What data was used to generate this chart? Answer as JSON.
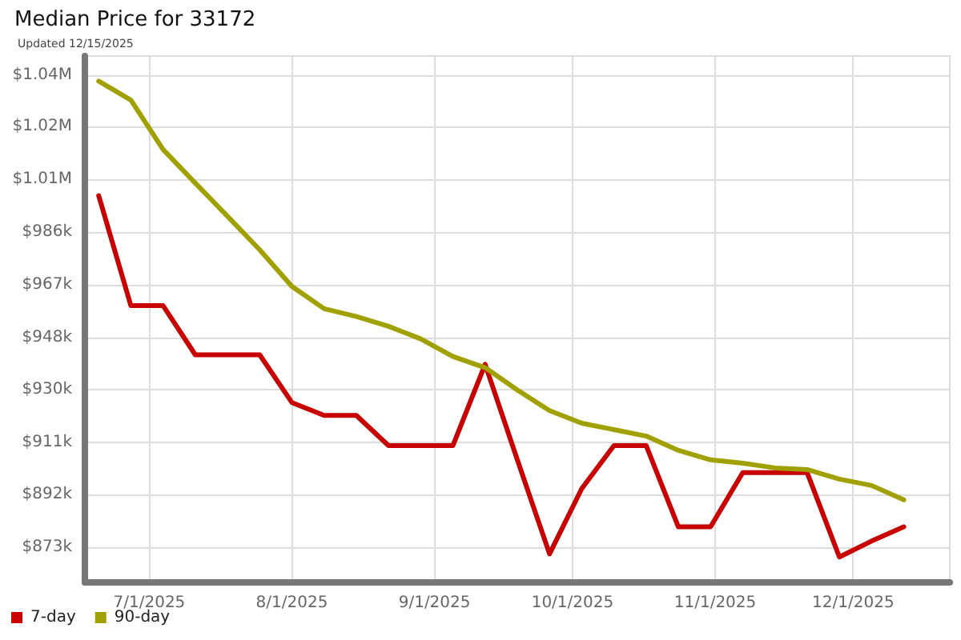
{
  "chart_data": {
    "type": "line",
    "title": "Median Price for 33172",
    "subtitle": "Updated 12/15/2025",
    "x": [
      "2025-06-20",
      "2025-06-27",
      "2025-07-04",
      "2025-07-11",
      "2025-07-18",
      "2025-07-25",
      "2025-08-01",
      "2025-08-08",
      "2025-08-15",
      "2025-08-22",
      "2025-08-29",
      "2025-09-05",
      "2025-09-12",
      "2025-09-19",
      "2025-09-26",
      "2025-10-03",
      "2025-10-10",
      "2025-10-17",
      "2025-10-24",
      "2025-10-31",
      "2025-11-07",
      "2025-11-14",
      "2025-11-21",
      "2025-11-28",
      "2025-12-05",
      "2025-12-12"
    ],
    "series": [
      {
        "name": "7-day",
        "color": "#c80000",
        "values": [
          999000,
          959600,
          959600,
          942000,
          942000,
          942000,
          924900,
          920300,
          920300,
          909500,
          909500,
          909500,
          938600,
          904400,
          870700,
          894100,
          909500,
          909500,
          880400,
          880400,
          899800,
          899800,
          899800,
          869600,
          875300,
          880400
        ]
      },
      {
        "name": "90-day",
        "color": "#a0a000",
        "values": [
          1040000,
          1033200,
          1015500,
          1003500,
          991600,
          979600,
          966500,
          958500,
          955700,
          952200,
          947700,
          941400,
          937400,
          929400,
          922000,
          917500,
          915200,
          912900,
          907800,
          904400,
          903200,
          901500,
          900900,
          897500,
          895200,
          890100
        ]
      }
    ],
    "xlim": [
      "2025-06-17",
      "2025-12-22"
    ],
    "xticks": [
      {
        "value": "2025-07-01",
        "label": "7/1/2025"
      },
      {
        "value": "2025-08-01",
        "label": "8/1/2025"
      },
      {
        "value": "2025-09-01",
        "label": "9/1/2025"
      },
      {
        "value": "2025-10-01",
        "label": "10/1/2025"
      },
      {
        "value": "2025-11-01",
        "label": "11/1/2025"
      },
      {
        "value": "2025-12-01",
        "label": "12/1/2025"
      }
    ],
    "ylim": [
      860500,
      1049000
    ],
    "yticks": [
      {
        "value": 873000,
        "label": "$873k"
      },
      {
        "value": 891900,
        "label": "$892k"
      },
      {
        "value": 910700,
        "label": "$911k"
      },
      {
        "value": 929500,
        "label": "$930k"
      },
      {
        "value": 948300,
        "label": "$948k"
      },
      {
        "value": 967100,
        "label": "$967k"
      },
      {
        "value": 985900,
        "label": "$986k"
      },
      {
        "value": 1005000,
        "label": "$1.01M"
      },
      {
        "value": 1023800,
        "label": "$1.02M"
      },
      {
        "value": 1042200,
        "label": "$1.04M"
      }
    ],
    "grid": true,
    "legend": "bottom left",
    "marker": "none",
    "line_style": "solid"
  }
}
